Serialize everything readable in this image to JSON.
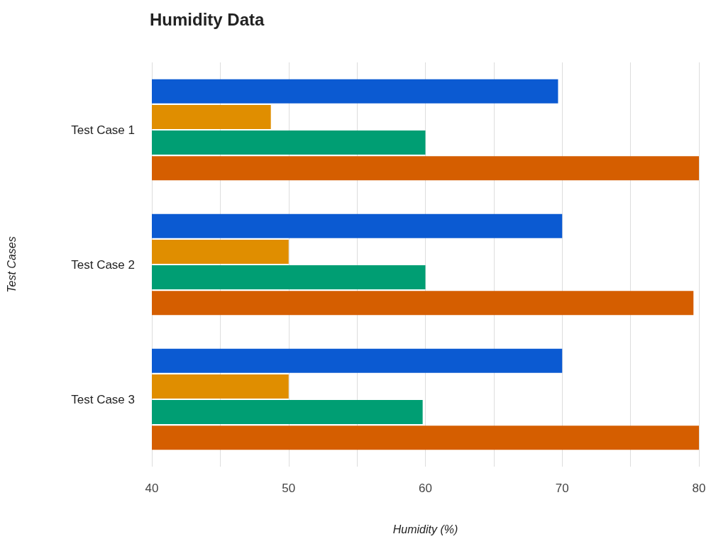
{
  "chart_data": {
    "type": "bar",
    "orientation": "horizontal",
    "title": "Humidity Data",
    "xlabel": "Humidity (%)",
    "ylabel": "Test Cases",
    "categories": [
      "Test Case 1",
      "Test Case 2",
      "Test Case 3"
    ],
    "series": [
      {
        "color": "#0b5ad2",
        "values": [
          69.7,
          70,
          70
        ]
      },
      {
        "color": "#e08e00",
        "values": [
          48.7,
          50,
          50
        ]
      },
      {
        "color": "#009e73",
        "values": [
          60,
          60,
          59.8
        ]
      },
      {
        "color": "#d55e00",
        "values": [
          80,
          79.6,
          80
        ]
      }
    ],
    "xlim": [
      40,
      80
    ],
    "xticks": [
      40,
      {
        "value": 45,
        "label": null
      },
      50,
      {
        "value": 55,
        "label": null
      },
      60,
      {
        "value": 65,
        "label": null
      },
      70,
      {
        "value": 75,
        "label": null
      },
      80
    ],
    "grid": "x"
  }
}
